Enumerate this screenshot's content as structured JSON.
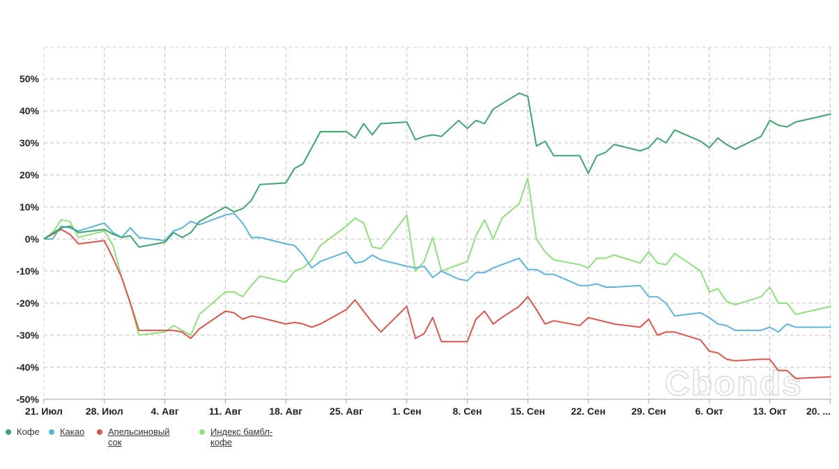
{
  "watermark": "Cbonds",
  "chart_data": {
    "type": "line",
    "ylim": [
      -52,
      60
    ],
    "y_ticks": [
      -50,
      -40,
      -30,
      -20,
      -10,
      0,
      10,
      20,
      30,
      40,
      50
    ],
    "y_tick_labels": [
      "-50%",
      "-40%",
      "-30%",
      "-20%",
      "-10%",
      "0%",
      "10%",
      "20%",
      "30%",
      "40%",
      "50%"
    ],
    "x_tick_labels": [
      "21. Июл",
      "28. Июл",
      "4. Авг",
      "11. Авг",
      "18. Авг",
      "25. Авг",
      "1. Сен",
      "8. Сен",
      "15. Сен",
      "22. Сен",
      "29. Сен",
      "6. Окт",
      "13. Окт",
      "20. ..."
    ],
    "x_range": [
      0,
      91.1
    ],
    "grid": true,
    "legend_position": "bottom-left",
    "series": [
      {
        "name": "Кофе",
        "color": "#3aa56c",
        "underline": false,
        "points": [
          [
            0,
            0
          ],
          [
            2,
            3.5
          ],
          [
            3,
            4
          ],
          [
            4,
            2
          ],
          [
            7,
            3
          ],
          [
            8,
            1.5
          ],
          [
            9,
            0.5
          ],
          [
            10,
            1
          ],
          [
            11,
            -2.5
          ],
          [
            14,
            -1
          ],
          [
            15,
            2
          ],
          [
            16,
            0.5
          ],
          [
            17,
            2
          ],
          [
            18,
            5.5
          ],
          [
            21,
            10
          ],
          [
            22,
            8.5
          ],
          [
            23,
            9.5
          ],
          [
            24,
            12
          ],
          [
            25,
            17
          ],
          [
            28,
            17.5
          ],
          [
            29,
            22
          ],
          [
            30,
            23.5
          ],
          [
            32,
            33.5
          ],
          [
            35,
            33.5
          ],
          [
            36,
            31.5
          ],
          [
            37,
            36
          ],
          [
            38,
            32.5
          ],
          [
            39,
            36
          ],
          [
            42,
            36.5
          ],
          [
            43,
            31
          ],
          [
            44,
            32
          ],
          [
            45,
            32.5
          ],
          [
            46,
            32
          ],
          [
            48,
            37
          ],
          [
            49,
            34.5
          ],
          [
            50,
            37
          ],
          [
            51,
            36
          ],
          [
            52,
            40.5
          ],
          [
            55,
            45.5
          ],
          [
            56,
            44.5
          ],
          [
            57,
            29
          ],
          [
            58,
            30.5
          ],
          [
            59,
            26
          ],
          [
            62,
            26
          ],
          [
            63,
            20.5
          ],
          [
            64,
            26
          ],
          [
            65,
            27
          ],
          [
            66,
            29.5
          ],
          [
            69,
            27.5
          ],
          [
            70,
            28.5
          ],
          [
            71,
            31.5
          ],
          [
            72,
            30
          ],
          [
            73,
            34
          ],
          [
            76,
            30.5
          ],
          [
            77,
            28.5
          ],
          [
            78,
            31.5
          ],
          [
            79,
            29.5
          ],
          [
            80,
            28
          ],
          [
            83,
            32
          ],
          [
            84,
            37
          ],
          [
            85,
            35.5
          ],
          [
            86,
            35
          ],
          [
            87,
            36.5
          ],
          [
            91.1,
            39
          ]
        ]
      },
      {
        "name": "Какао",
        "color": "#5ab4dc",
        "underline": true,
        "points": [
          [
            0,
            0
          ],
          [
            1,
            0
          ],
          [
            2,
            4
          ],
          [
            3,
            3.5
          ],
          [
            4,
            2.5
          ],
          [
            7,
            5
          ],
          [
            8,
            2
          ],
          [
            9,
            0.5
          ],
          [
            10,
            3.5
          ],
          [
            11,
            0.5
          ],
          [
            14,
            -0.5
          ],
          [
            15,
            2.5
          ],
          [
            16,
            3.5
          ],
          [
            17,
            5.5
          ],
          [
            18,
            4.5
          ],
          [
            21,
            7.5
          ],
          [
            22,
            8
          ],
          [
            23,
            5
          ],
          [
            24,
            0.5
          ],
          [
            25,
            0.5
          ],
          [
            28,
            -1.5
          ],
          [
            29,
            -2
          ],
          [
            30,
            -5
          ],
          [
            31,
            -9
          ],
          [
            32,
            -7
          ],
          [
            35,
            -4
          ],
          [
            36,
            -7.5
          ],
          [
            37,
            -7
          ],
          [
            38,
            -5
          ],
          [
            39,
            -6.5
          ],
          [
            42,
            -8.5
          ],
          [
            43,
            -9
          ],
          [
            44,
            -8.5
          ],
          [
            45,
            -12
          ],
          [
            46,
            -10
          ],
          [
            48,
            -12.5
          ],
          [
            49,
            -13
          ],
          [
            50,
            -10.5
          ],
          [
            51,
            -10.5
          ],
          [
            52,
            -9
          ],
          [
            55,
            -6
          ],
          [
            56,
            -9.5
          ],
          [
            57,
            -9.5
          ],
          [
            58,
            -11
          ],
          [
            59,
            -11
          ],
          [
            62,
            -14.5
          ],
          [
            63,
            -14.5
          ],
          [
            64,
            -14
          ],
          [
            65,
            -15
          ],
          [
            66,
            -15
          ],
          [
            69,
            -14.5
          ],
          [
            70,
            -18
          ],
          [
            71,
            -18
          ],
          [
            72,
            -20
          ],
          [
            73,
            -24
          ],
          [
            76,
            -23
          ],
          [
            77,
            -24.5
          ],
          [
            78,
            -26.5
          ],
          [
            79,
            -27
          ],
          [
            80,
            -28.5
          ],
          [
            83,
            -28.5
          ],
          [
            84,
            -27.5
          ],
          [
            85,
            -29
          ],
          [
            86,
            -26.5
          ],
          [
            87,
            -27.5
          ],
          [
            91.1,
            -27.5
          ]
        ]
      },
      {
        "name": "Апельсиновый сок",
        "color": "#e0524a",
        "underline": true,
        "points": [
          [
            0,
            0
          ],
          [
            2,
            3
          ],
          [
            3,
            1.5
          ],
          [
            4,
            -1.5
          ],
          [
            7,
            -0.5
          ],
          [
            8,
            -6
          ],
          [
            9,
            -12
          ],
          [
            10,
            -20
          ],
          [
            11,
            -28.5
          ],
          [
            14,
            -28.5
          ],
          [
            15,
            -28.5
          ],
          [
            16,
            -29
          ],
          [
            17,
            -31
          ],
          [
            18,
            -28
          ],
          [
            21,
            -22.5
          ],
          [
            22,
            -23
          ],
          [
            23,
            -25
          ],
          [
            24,
            -24
          ],
          [
            25,
            -24.5
          ],
          [
            28,
            -26.5
          ],
          [
            29,
            -26
          ],
          [
            30,
            -26.5
          ],
          [
            31,
            -27.5
          ],
          [
            32,
            -26.5
          ],
          [
            35,
            -22
          ],
          [
            36,
            -19
          ],
          [
            37,
            -22.5
          ],
          [
            38,
            -26
          ],
          [
            39,
            -29
          ],
          [
            42,
            -21
          ],
          [
            43,
            -31
          ],
          [
            44,
            -29.5
          ],
          [
            45,
            -24.5
          ],
          [
            46,
            -32
          ],
          [
            49,
            -32
          ],
          [
            50,
            -25
          ],
          [
            51,
            -22.5
          ],
          [
            52,
            -26.5
          ],
          [
            53,
            -24.5
          ],
          [
            55,
            -21
          ],
          [
            56,
            -18
          ],
          [
            57,
            -22
          ],
          [
            58,
            -26.5
          ],
          [
            59,
            -25.5
          ],
          [
            62,
            -27
          ],
          [
            63,
            -24.5
          ],
          [
            66,
            -26.5
          ],
          [
            69,
            -27.5
          ],
          [
            70,
            -25
          ],
          [
            71,
            -30
          ],
          [
            72,
            -29
          ],
          [
            73,
            -29
          ],
          [
            76,
            -31.5
          ],
          [
            77,
            -35
          ],
          [
            78,
            -35.5
          ],
          [
            79,
            -37.5
          ],
          [
            80,
            -38
          ],
          [
            83,
            -37.5
          ],
          [
            84,
            -37.5
          ],
          [
            85,
            -41
          ],
          [
            86,
            -41
          ],
          [
            87,
            -43.5
          ],
          [
            91.1,
            -43
          ]
        ]
      },
      {
        "name": "Индекс бамбл-кофе",
        "color": "#8ee07a",
        "underline": true,
        "points": [
          [
            0,
            0
          ],
          [
            1,
            2
          ],
          [
            2,
            6
          ],
          [
            3,
            5.5
          ],
          [
            4,
            0.5
          ],
          [
            7,
            2.5
          ],
          [
            8,
            -2
          ],
          [
            9,
            -12
          ],
          [
            10,
            -20
          ],
          [
            11,
            -30
          ],
          [
            14,
            -29
          ],
          [
            15,
            -27
          ],
          [
            16,
            -28.5
          ],
          [
            17,
            -30
          ],
          [
            18,
            -23.5
          ],
          [
            21,
            -16.5
          ],
          [
            22,
            -16.5
          ],
          [
            23,
            -18
          ],
          [
            24,
            -14.5
          ],
          [
            25,
            -11.5
          ],
          [
            28,
            -13.5
          ],
          [
            29,
            -10
          ],
          [
            30,
            -9
          ],
          [
            31,
            -6.5
          ],
          [
            32,
            -2
          ],
          [
            35,
            4
          ],
          [
            36,
            6.5
          ],
          [
            37,
            5
          ],
          [
            38,
            -2.5
          ],
          [
            39,
            -3
          ],
          [
            42,
            7.5
          ],
          [
            43,
            -10
          ],
          [
            44,
            -7
          ],
          [
            45,
            0.5
          ],
          [
            46,
            -10
          ],
          [
            49,
            -7
          ],
          [
            50,
            1
          ],
          [
            51,
            6
          ],
          [
            52,
            0
          ],
          [
            53,
            6.5
          ],
          [
            55,
            11
          ],
          [
            56,
            19
          ],
          [
            57,
            0
          ],
          [
            58,
            -4
          ],
          [
            59,
            -6.5
          ],
          [
            62,
            -8
          ],
          [
            63,
            -9
          ],
          [
            64,
            -6
          ],
          [
            65,
            -6
          ],
          [
            66,
            -5
          ],
          [
            69,
            -7.5
          ],
          [
            70,
            -4
          ],
          [
            71,
            -7.5
          ],
          [
            72,
            -8
          ],
          [
            73,
            -4.5
          ],
          [
            76,
            -10
          ],
          [
            77,
            -16.5
          ],
          [
            78,
            -15.5
          ],
          [
            79,
            -19.5
          ],
          [
            80,
            -20.5
          ],
          [
            83,
            -18
          ],
          [
            84,
            -15
          ],
          [
            85,
            -20
          ],
          [
            86,
            -20
          ],
          [
            87,
            -23.5
          ],
          [
            91.1,
            -21
          ]
        ]
      }
    ]
  }
}
